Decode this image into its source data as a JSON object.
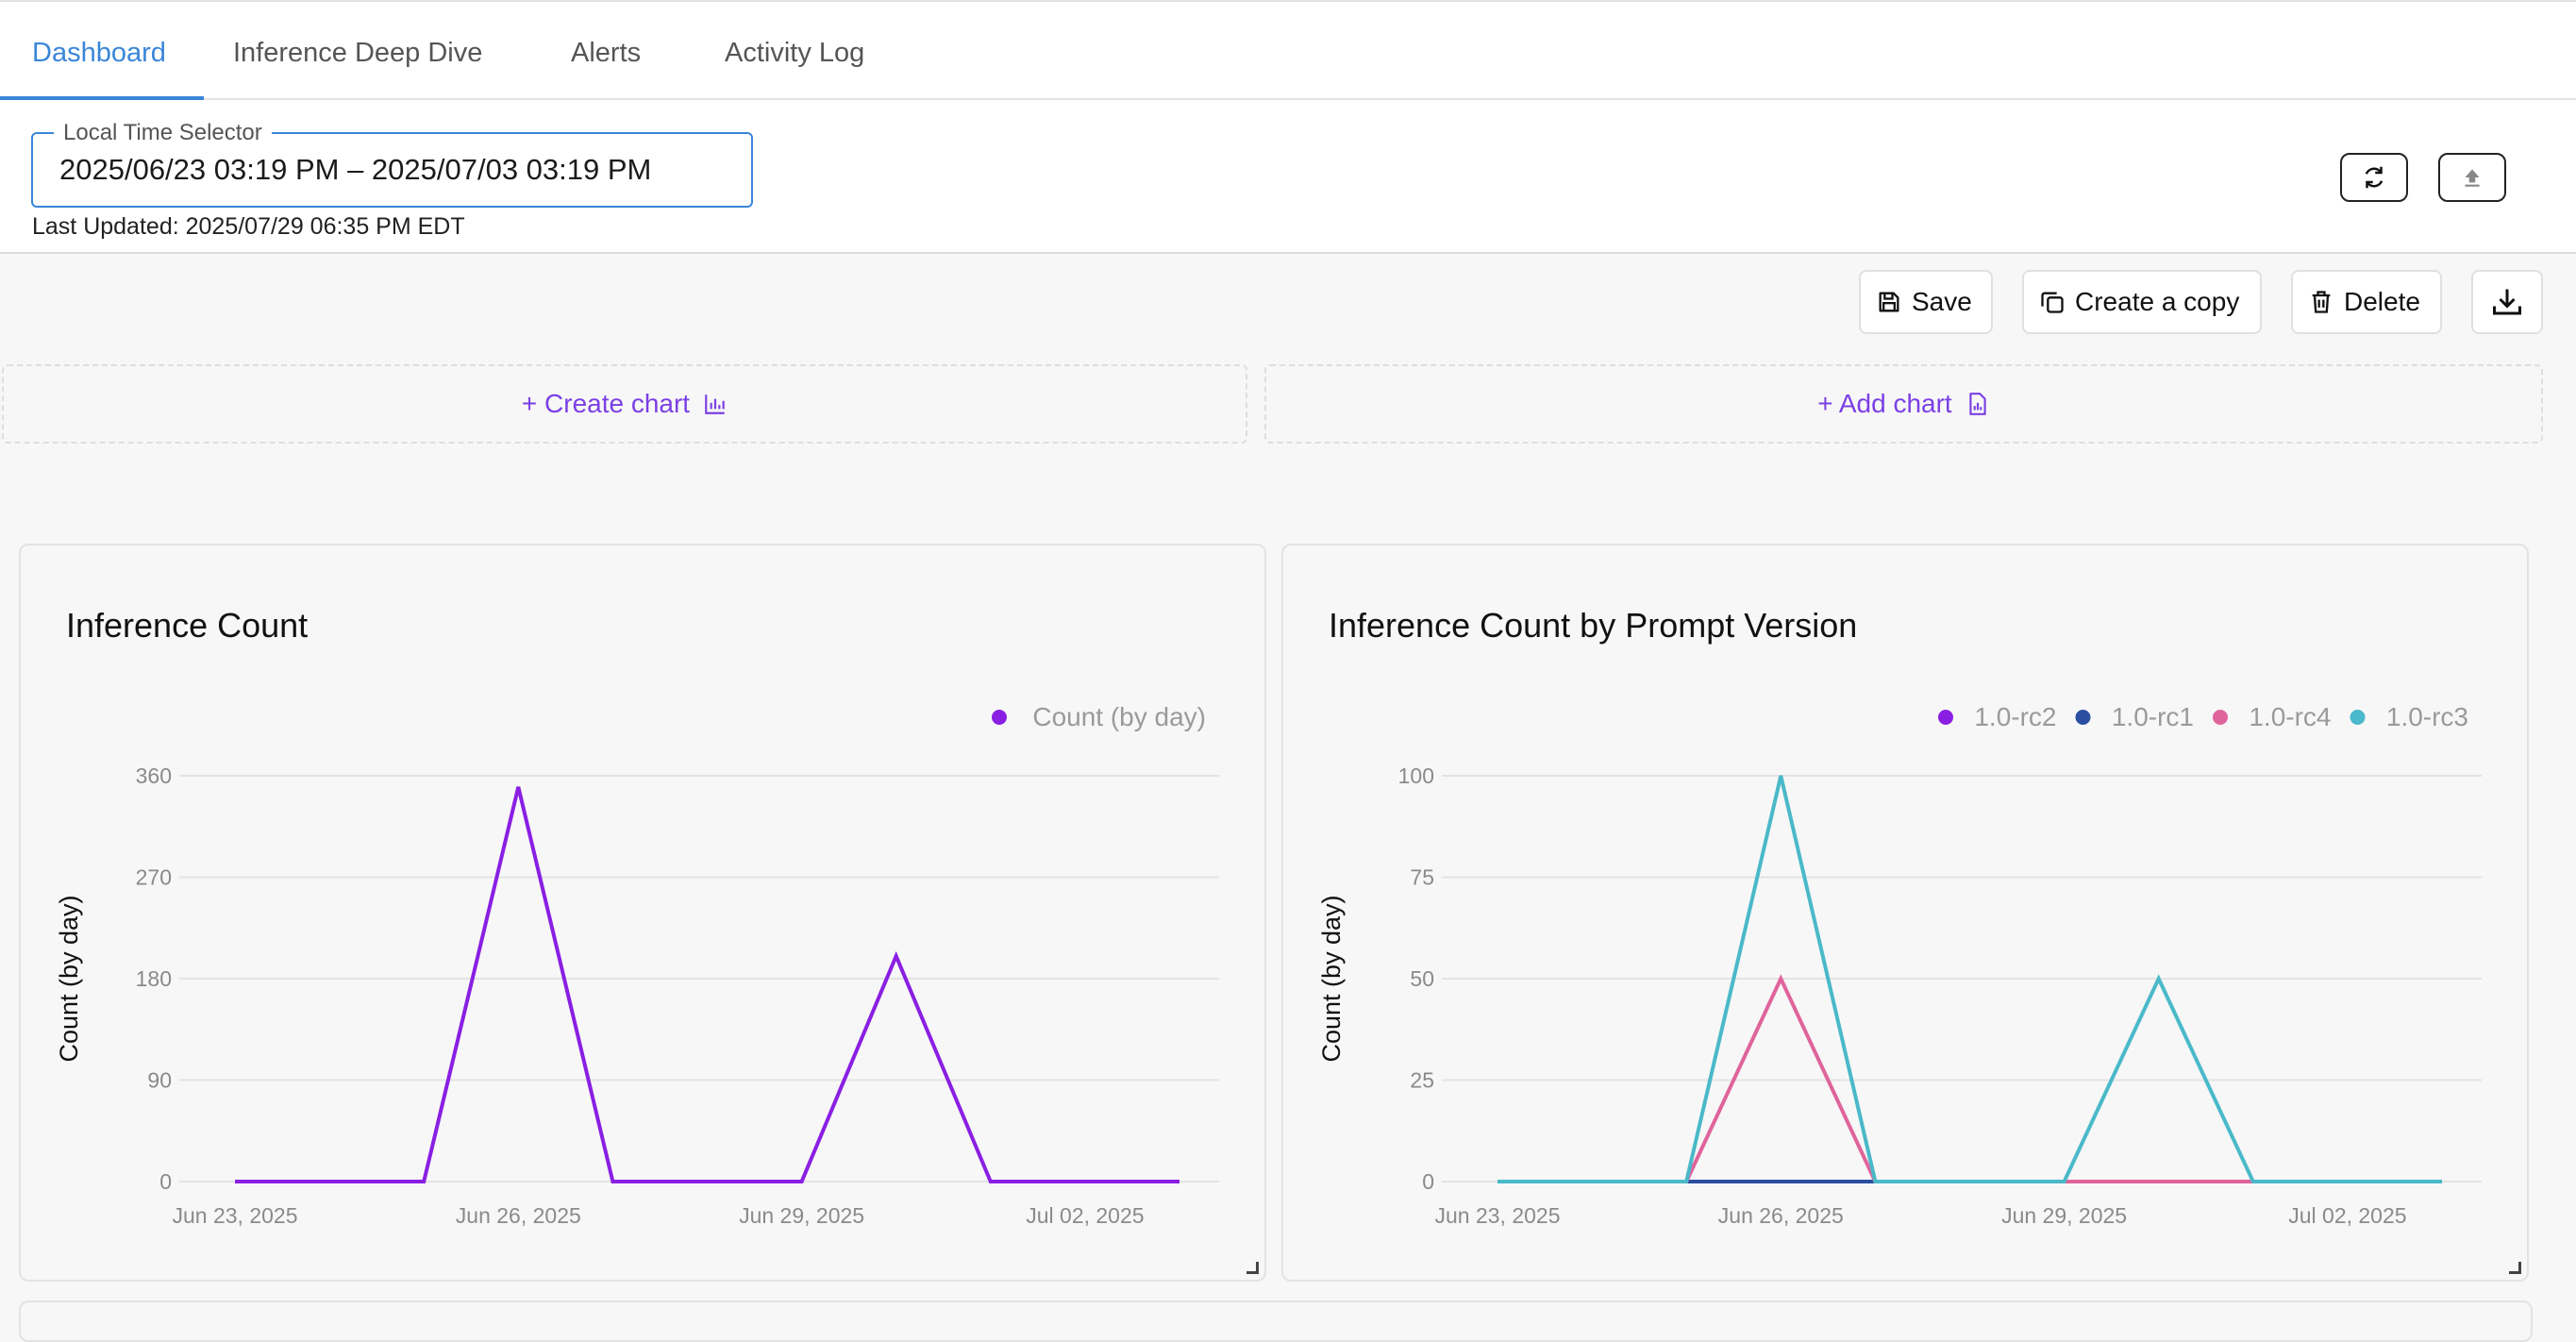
{
  "tabs": [
    {
      "label": "Dashboard",
      "active": true
    },
    {
      "label": "Inference Deep Dive",
      "active": false
    },
    {
      "label": "Alerts",
      "active": false
    },
    {
      "label": "Activity Log",
      "active": false
    }
  ],
  "time_selector": {
    "label": "Local Time Selector",
    "value": "2025/06/23 03:19 PM – 2025/07/03 03:19 PM",
    "last_updated": "Last Updated: 2025/07/29 06:35 PM EDT"
  },
  "toolbar": {
    "save_label": "Save",
    "copy_label": "Create a copy",
    "delete_label": "Delete"
  },
  "slots": {
    "create_chart": "+ Create chart",
    "add_chart": "+ Add chart"
  },
  "accent_colors": {
    "tab_active": "#3a86d8",
    "link": "#7b3fe4"
  },
  "chart_data": [
    {
      "type": "line",
      "title": "Inference Count",
      "ylabel": "Count (by day)",
      "xlabel": "",
      "x": [
        "2025-06-23",
        "2025-06-24",
        "2025-06-25",
        "2025-06-26",
        "2025-06-27",
        "2025-06-28",
        "2025-06-29",
        "2025-06-30",
        "2025-07-01",
        "2025-07-02",
        "2025-07-03"
      ],
      "xticks": [
        "Jun 23, 2025",
        "Jun 26, 2025",
        "Jun 29, 2025",
        "Jul 02, 2025"
      ],
      "ylim": [
        0,
        360
      ],
      "yticks": [
        0,
        90,
        180,
        270,
        360
      ],
      "grid": true,
      "legend_position": "top-right",
      "series": [
        {
          "name": "Count (by day)",
          "color": "#8a1fe3",
          "values": [
            0,
            0,
            0,
            350,
            0,
            0,
            0,
            200,
            0,
            0,
            0
          ]
        }
      ]
    },
    {
      "type": "line",
      "title": "Inference Count by Prompt Version",
      "ylabel": "Count (by day)",
      "xlabel": "",
      "x": [
        "2025-06-23",
        "2025-06-24",
        "2025-06-25",
        "2025-06-26",
        "2025-06-27",
        "2025-06-28",
        "2025-06-29",
        "2025-06-30",
        "2025-07-01",
        "2025-07-02",
        "2025-07-03"
      ],
      "xticks": [
        "Jun 23, 2025",
        "Jun 26, 2025",
        "Jun 29, 2025",
        "Jul 02, 2025"
      ],
      "ylim": [
        0,
        100
      ],
      "yticks": [
        0,
        25,
        50,
        75,
        100
      ],
      "grid": true,
      "legend_position": "top-right",
      "series": [
        {
          "name": "1.0-rc2",
          "color": "#8a1fe3",
          "values": [
            0,
            0,
            0,
            0,
            0,
            0,
            0,
            0,
            0,
            0,
            0
          ]
        },
        {
          "name": "1.0-rc1",
          "color": "#2b4fa0",
          "values": [
            0,
            0,
            0,
            0,
            0,
            0,
            0,
            0,
            0,
            0,
            0
          ]
        },
        {
          "name": "1.0-rc4",
          "color": "#e0649c",
          "values": [
            0,
            0,
            0,
            50,
            0,
            0,
            0,
            0,
            0,
            0,
            0
          ]
        },
        {
          "name": "1.0-rc3",
          "color": "#4ab9c9",
          "values": [
            0,
            0,
            0,
            100,
            0,
            0,
            0,
            50,
            0,
            0,
            0
          ]
        }
      ]
    }
  ]
}
